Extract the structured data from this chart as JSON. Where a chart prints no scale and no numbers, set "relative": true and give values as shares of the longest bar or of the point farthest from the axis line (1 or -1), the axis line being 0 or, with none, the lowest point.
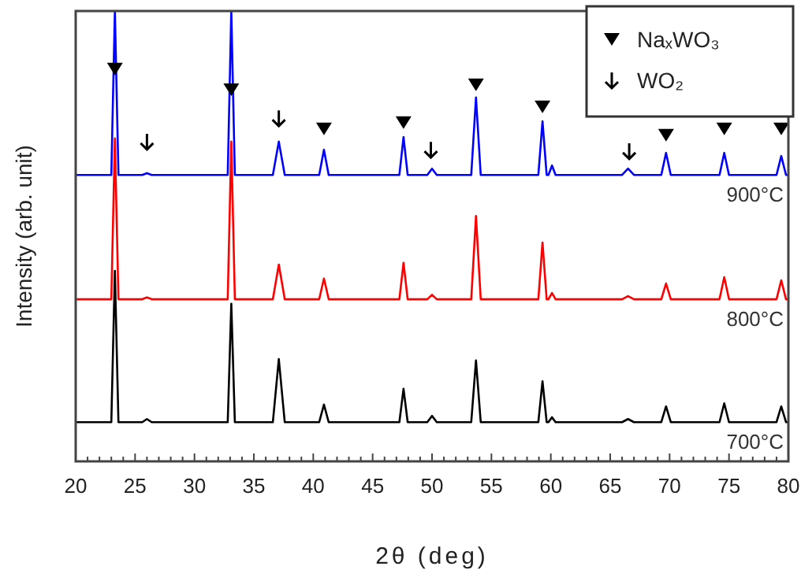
{
  "chart_data": {
    "type": "line",
    "relative": true,
    "xlabel": "2θ (deg)",
    "ylabel": "Intensity (arb. unit)",
    "xlim": [
      20,
      80
    ],
    "xticks": [
      20,
      {
        "value": 21,
        "label": null
      },
      {
        "value": 22,
        "label": null
      },
      {
        "value": 23,
        "label": null
      },
      {
        "value": 24,
        "label": null
      },
      25,
      {
        "value": 26,
        "label": null
      },
      {
        "value": 27,
        "label": null
      },
      {
        "value": 28,
        "label": null
      },
      {
        "value": 29,
        "label": null
      },
      30,
      {
        "value": 31,
        "label": null
      },
      {
        "value": 32,
        "label": null
      },
      {
        "value": 33,
        "label": null
      },
      {
        "value": 34,
        "label": null
      },
      35,
      {
        "value": 36,
        "label": null
      },
      {
        "value": 37,
        "label": null
      },
      {
        "value": 38,
        "label": null
      },
      {
        "value": 39,
        "label": null
      },
      40,
      {
        "value": 41,
        "label": null
      },
      {
        "value": 42,
        "label": null
      },
      {
        "value": 43,
        "label": null
      },
      {
        "value": 44,
        "label": null
      },
      45,
      {
        "value": 46,
        "label": null
      },
      {
        "value": 47,
        "label": null
      },
      {
        "value": 48,
        "label": null
      },
      {
        "value": 49,
        "label": null
      },
      50,
      {
        "value": 51,
        "label": null
      },
      {
        "value": 52,
        "label": null
      },
      {
        "value": 53,
        "label": null
      },
      {
        "value": 54,
        "label": null
      },
      55,
      {
        "value": 56,
        "label": null
      },
      {
        "value": 57,
        "label": null
      },
      {
        "value": 58,
        "label": null
      },
      {
        "value": 59,
        "label": null
      },
      60,
      {
        "value": 61,
        "label": null
      },
      {
        "value": 62,
        "label": null
      },
      {
        "value": 63,
        "label": null
      },
      {
        "value": 64,
        "label": null
      },
      65,
      {
        "value": 66,
        "label": null
      },
      {
        "value": 67,
        "label": null
      },
      {
        "value": 68,
        "label": null
      },
      {
        "value": 69,
        "label": null
      },
      70,
      {
        "value": 71,
        "label": null
      },
      {
        "value": 72,
        "label": null
      },
      {
        "value": 73,
        "label": null
      },
      {
        "value": 74,
        "label": null
      },
      75,
      {
        "value": 76,
        "label": null
      },
      {
        "value": 77,
        "label": null
      },
      {
        "value": 78,
        "label": null
      },
      {
        "value": 79,
        "label": null
      },
      80
    ],
    "tick_labels": "x",
    "legend": "top right",
    "line_style": "solid",
    "x": [
      20,
      23.0,
      23.3,
      23.6,
      25.6,
      26,
      26.4,
      32.8,
      33.1,
      33.4,
      36.6,
      37.1,
      37.6,
      40.5,
      40.9,
      41.3,
      47.25,
      47.6,
      47.95,
      49.6,
      50,
      50.4,
      53.3,
      53.7,
      54.1,
      58.95,
      59.3,
      59.65,
      59.8,
      60.1,
      60.4,
      66,
      66.5,
      67,
      69.3,
      69.7,
      70.1,
      74.2,
      74.6,
      75,
      79,
      79.4,
      79.8,
      80
    ],
    "series": [
      {
        "name": "900°C",
        "color": "#0000ff",
        "values": [
          0.636,
          0.636,
          1,
          0.636,
          0.636,
          0.64,
          0.636,
          0.636,
          1,
          0.636,
          0.636,
          0.71,
          0.636,
          0.636,
          0.692,
          0.636,
          0.636,
          0.72,
          0.636,
          0.636,
          0.65,
          0.636,
          0.636,
          0.808,
          0.636,
          0.636,
          0.755,
          0.636,
          0.636,
          0.657,
          0.636,
          0.636,
          0.65,
          0.636,
          0.636,
          0.685,
          0.636,
          0.636,
          0.685,
          0.636,
          0.636,
          0.678,
          0.636,
          0.636
        ]
      },
      {
        "name": "800°C",
        "color": "#ff0000",
        "values": [
          0.36,
          0.36,
          0.717,
          0.36,
          0.36,
          0.364,
          0.36,
          0.36,
          0.71,
          0.36,
          0.36,
          0.437,
          0.36,
          0.36,
          0.406,
          0.36,
          0.36,
          0.441,
          0.36,
          0.36,
          0.37,
          0.36,
          0.36,
          0.545,
          0.36,
          0.36,
          0.486,
          0.36,
          0.36,
          0.374,
          0.36,
          0.36,
          0.367,
          0.36,
          0.36,
          0.395,
          0.36,
          0.36,
          0.409,
          0.36,
          0.36,
          0.402,
          0.36,
          0.36
        ]
      },
      {
        "name": "700°C",
        "color": "#000000",
        "values": [
          0.087,
          0.087,
          0.423,
          0.087,
          0.087,
          0.094,
          0.087,
          0.087,
          0.35,
          0.087,
          0.087,
          0.227,
          0.087,
          0.087,
          0.126,
          0.087,
          0.087,
          0.161,
          0.087,
          0.087,
          0.101,
          0.087,
          0.087,
          0.224,
          0.087,
          0.087,
          0.178,
          0.087,
          0.087,
          0.098,
          0.087,
          0.087,
          0.094,
          0.087,
          0.087,
          0.122,
          0.087,
          0.087,
          0.129,
          0.087,
          0.087,
          0.122,
          0.087,
          0.087
        ]
      },
      {
        "name": "NaₓWO₃",
        "type": "scatter",
        "marker": "triangle",
        "color": "#000000",
        "x": [
          23.3,
          33.1,
          40.9,
          47.6,
          53.7,
          59.3,
          69.7,
          74.6,
          79.4
        ],
        "values": [
          0.871,
          0.825,
          0.738,
          0.752,
          0.836,
          0.787,
          0.724,
          0.738,
          0.738
        ]
      },
      {
        "name": "WO₂",
        "type": "scatter",
        "color": "#000000",
        "x": [
          26,
          37.1,
          49.9,
          66.6
        ],
        "values": [
          0.71,
          0.762,
          0.692,
          0.689
        ]
      }
    ]
  }
}
